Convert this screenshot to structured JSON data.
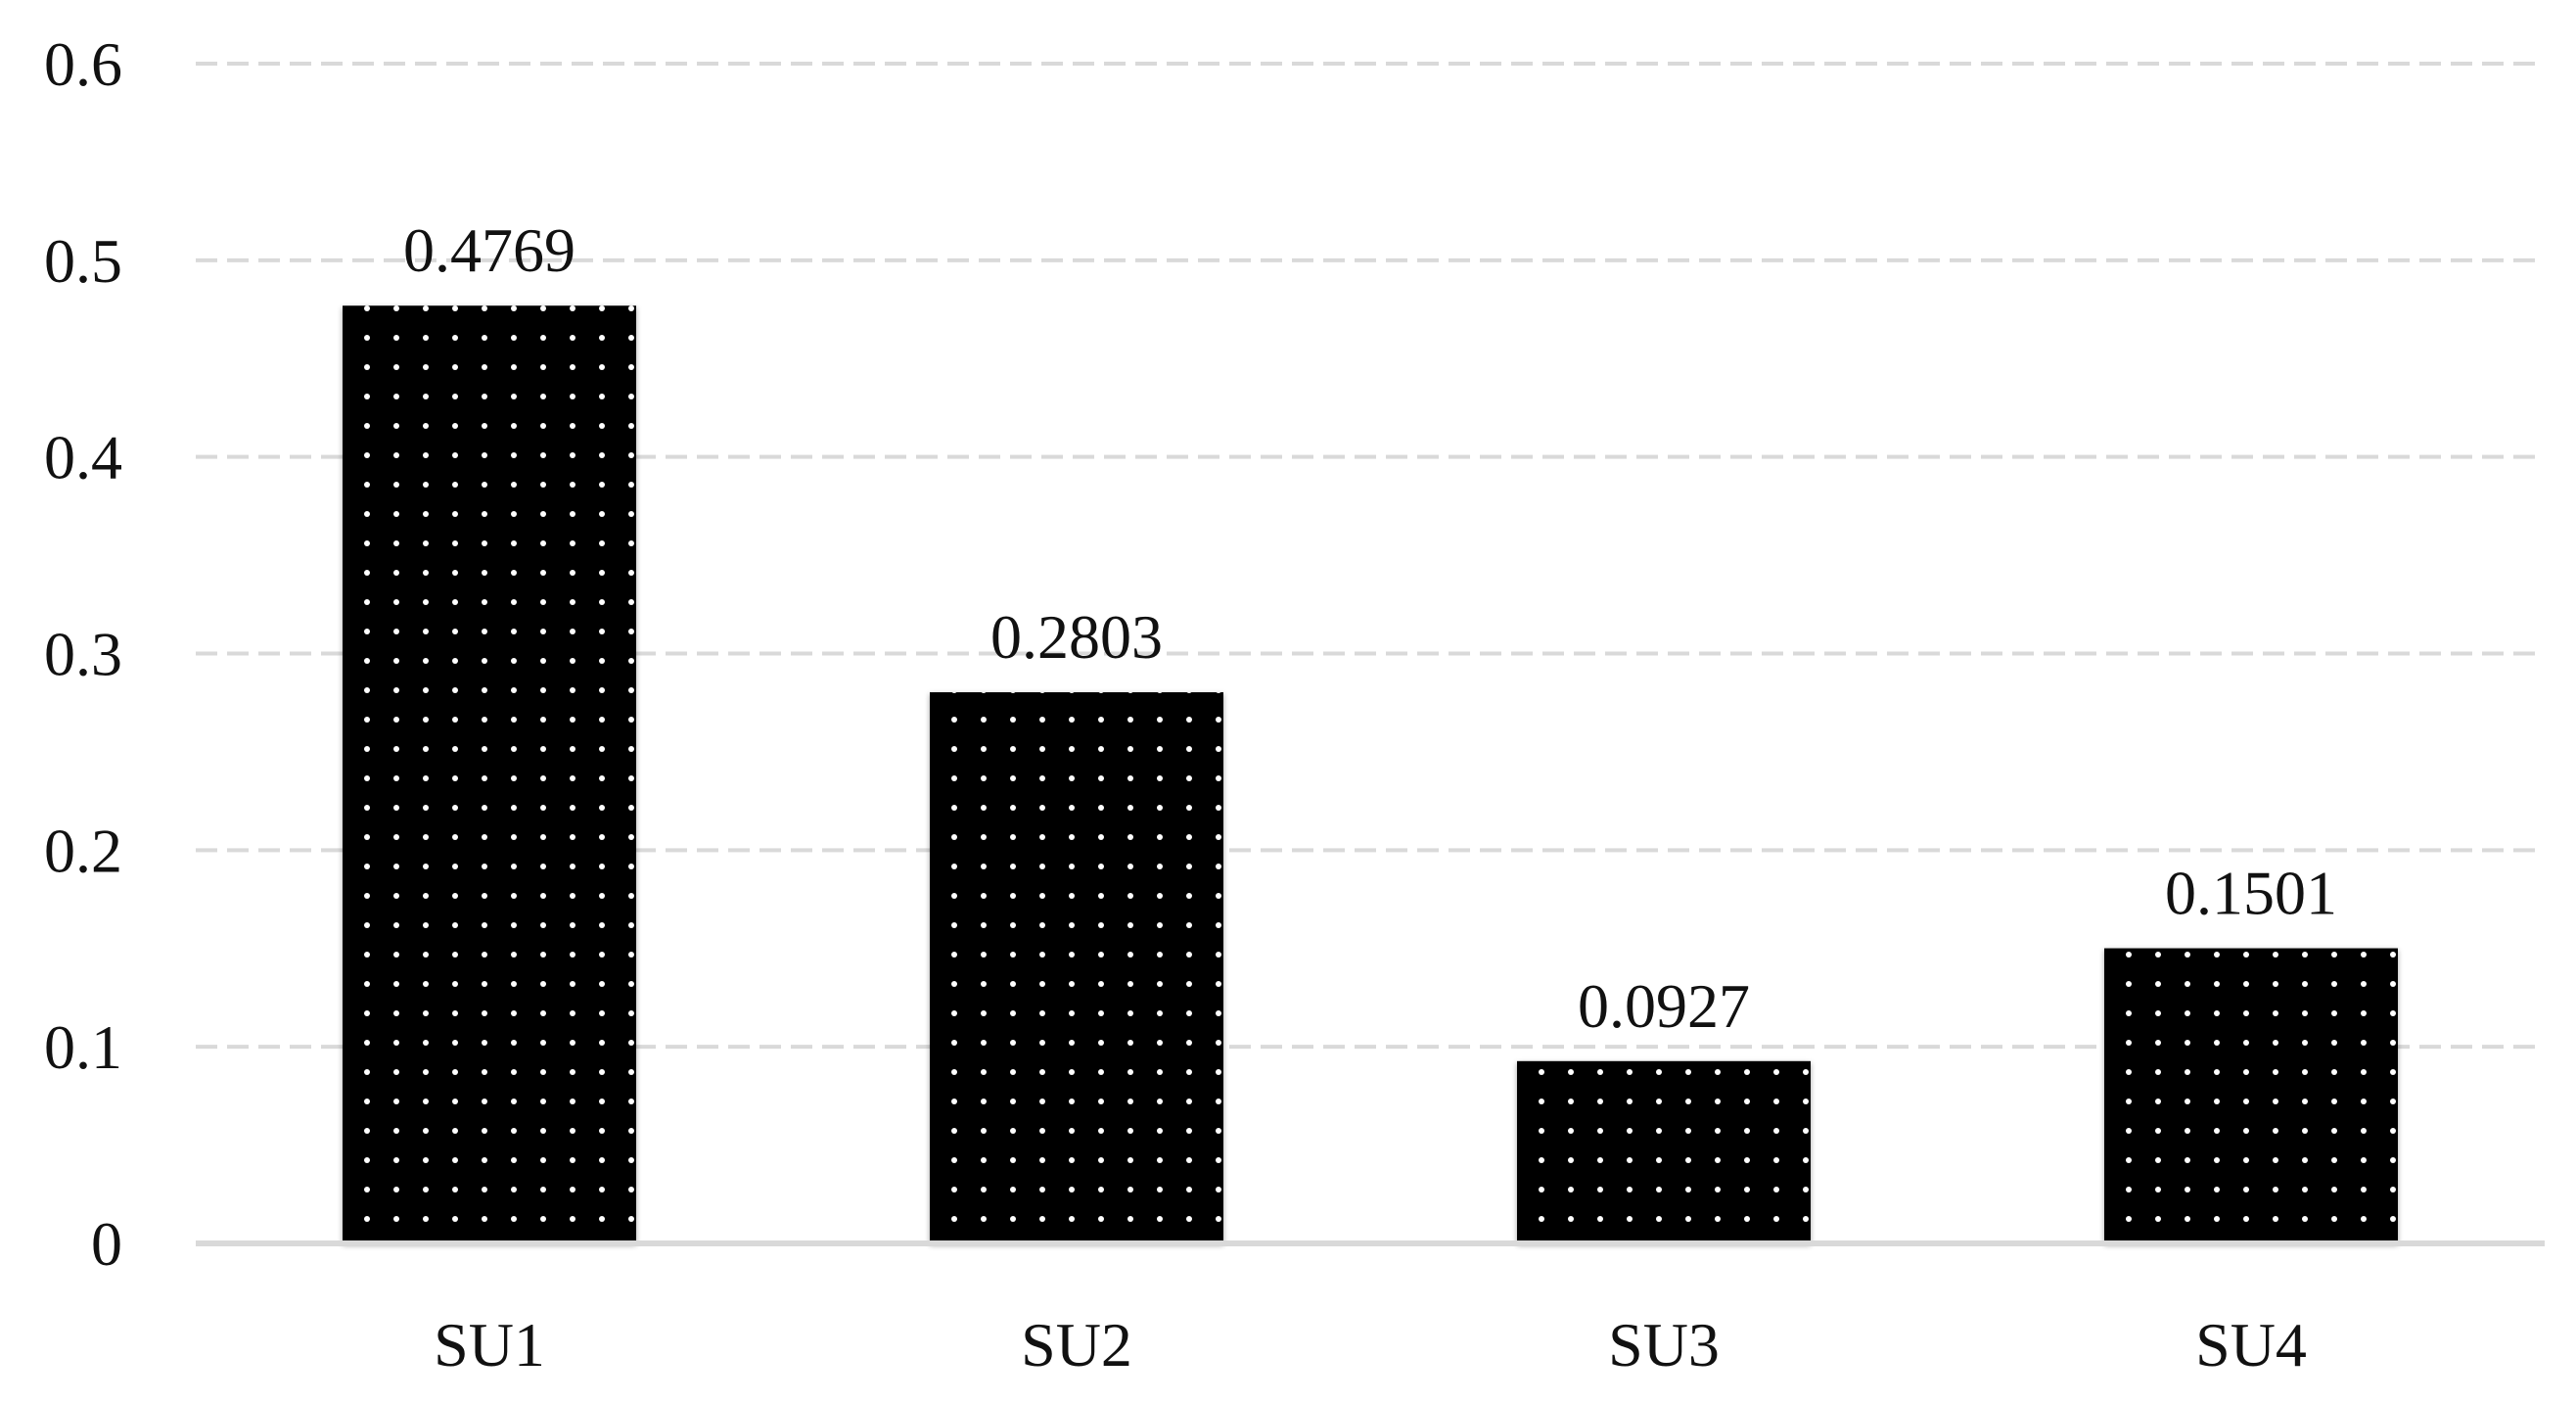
{
  "chart_data": {
    "type": "bar",
    "title": "",
    "xlabel": "",
    "ylabel": "",
    "categories": [
      "SU1",
      "SU2",
      "SU3",
      "SU4"
    ],
    "values": [
      0.4769,
      0.2803,
      0.0927,
      0.1501
    ],
    "data_labels": [
      "0.4769",
      "0.2803",
      "0.0927",
      "0.1501"
    ],
    "ylim": [
      0,
      0.6
    ],
    "y_ticks": [
      0,
      0.1,
      0.2,
      0.3,
      0.4,
      0.5,
      0.6
    ],
    "y_tick_labels": [
      "0",
      "0.1",
      "0.2",
      "0.3",
      "0.4",
      "0.5",
      "0.6"
    ],
    "grid": "horizontal-dashed",
    "legend": "none",
    "colors": {
      "bar_fill": "#000000",
      "bar_dots": "#ffffff",
      "grid": "#d9d9d9",
      "axis": "#d9d9d9",
      "text": "#111111"
    }
  }
}
